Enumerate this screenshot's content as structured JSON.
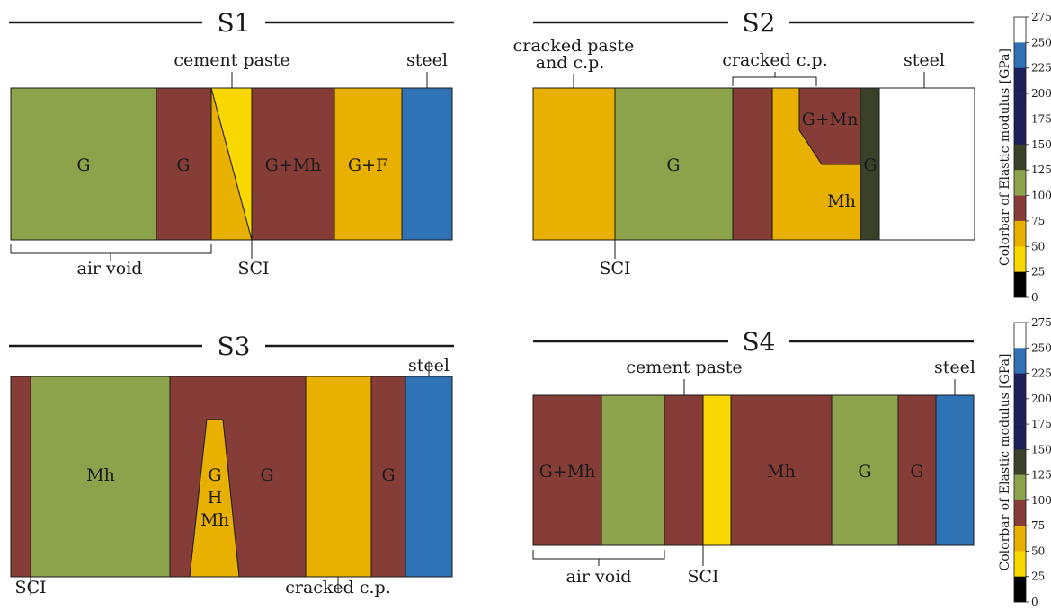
{
  "colors": {
    "green": "#8ca34b",
    "maroon": "#873d37",
    "gold": "#e8b000",
    "yellow": "#f8d800",
    "blue": "#2f72b6",
    "dark_olive": "#3b4129",
    "white": "#ffffff",
    "black": "#000000",
    "navy": "#1f1f5c",
    "outline": "#1a1a1a"
  },
  "panels": {
    "s1": {
      "title": "S1",
      "labels": [
        "G",
        "G",
        "G+Mh",
        "G+F"
      ],
      "callouts": {
        "cement_paste": "cement paste",
        "steel": "steel",
        "air_void": "air void",
        "sci": "SCI"
      }
    },
    "s2": {
      "title": "S2",
      "labels": [
        "G",
        "G+Mn",
        "G",
        "Mh"
      ],
      "callouts": {
        "cracked_paste_line1": "cracked paste",
        "cracked_paste_line2": "and c.p.",
        "cracked_cp": "cracked c.p.",
        "steel": "steel",
        "sci": "SCI"
      }
    },
    "s3": {
      "title": "S3",
      "labels": [
        "Mh",
        "G",
        "G",
        "G",
        "H",
        "Mh"
      ],
      "callouts": {
        "steel": "steel",
        "sci": "SCI",
        "cracked_cp": "cracked c.p."
      }
    },
    "s4": {
      "title": "S4",
      "labels": [
        "G+Mh",
        "Mh",
        "G",
        "G"
      ],
      "callouts": {
        "cement_paste": "cement paste",
        "steel": "steel",
        "air_void": "air void",
        "sci": "SCI"
      }
    }
  },
  "colorbar": {
    "label": "Colorbar of Elastic modulus [GPa]",
    "ticks": [
      "275",
      "250",
      "225",
      "200",
      "175",
      "150",
      "125",
      "100",
      "75",
      "50",
      "25",
      "0"
    ],
    "bands_top_to_bottom": [
      "white",
      "blue",
      "navy",
      "navy",
      "navy",
      "dark_olive",
      "green",
      "maroon",
      "gold",
      "yellow",
      "black"
    ]
  }
}
